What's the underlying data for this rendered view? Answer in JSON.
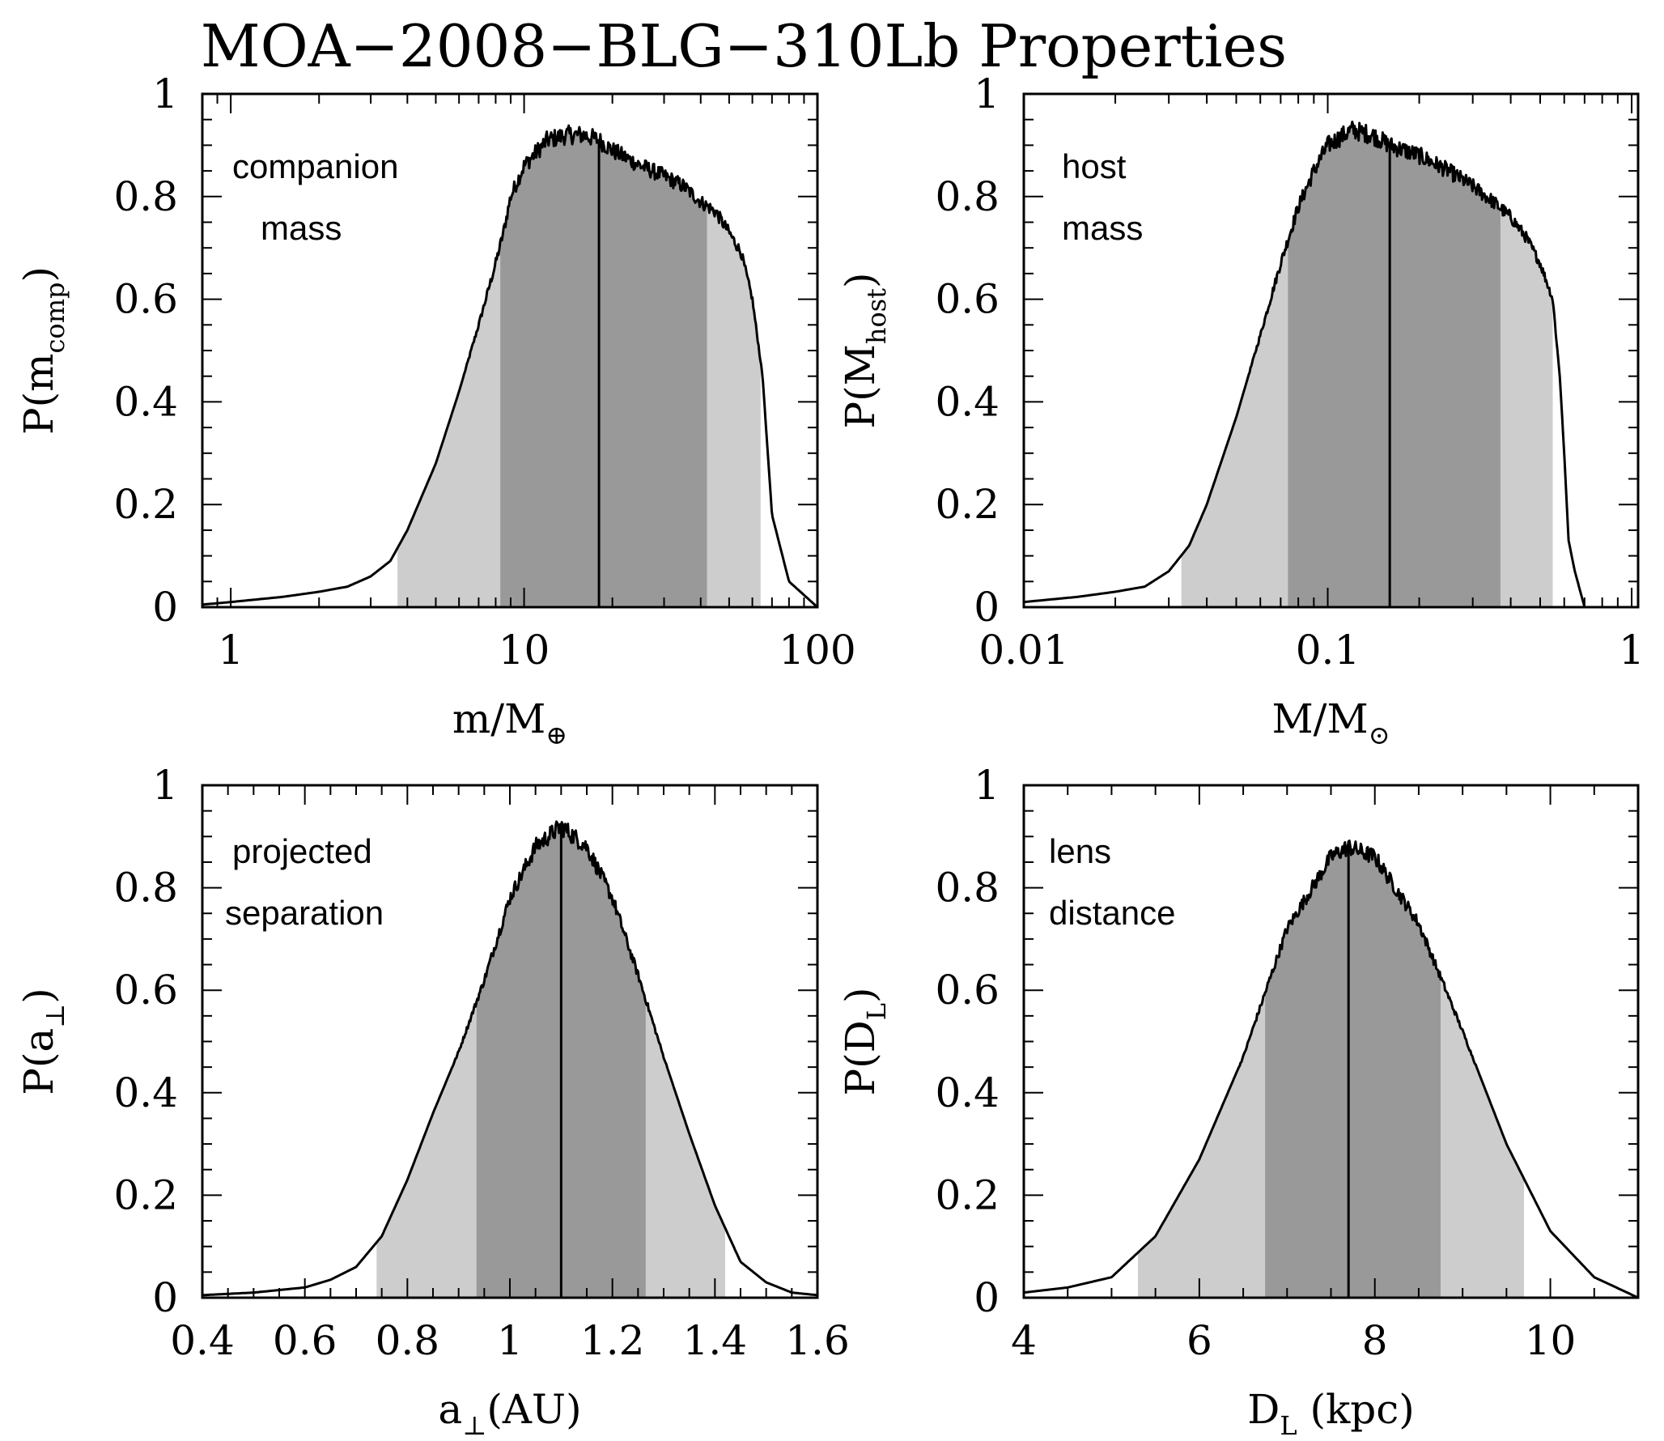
{
  "title": "MOA−2008−BLG−310Lb Properties",
  "colors": {
    "outer_band": "#cdcdcd",
    "inner_band": "#999999",
    "curve": "#000000"
  },
  "chart_data": [
    {
      "type": "area",
      "id": "companion-mass",
      "annotation": [
        "companion",
        "mass"
      ],
      "xscale": "log",
      "xlim": [
        0.8,
        100
      ],
      "ylim": [
        0,
        1
      ],
      "xticks": [
        1,
        10,
        100
      ],
      "xtick_labels": [
        "1",
        "10",
        "100"
      ],
      "yticks": [
        0,
        0.2,
        0.4,
        0.6,
        0.8,
        1
      ],
      "ytick_labels": [
        "0",
        "0.2",
        "0.4",
        "0.6",
        "0.8",
        "1"
      ],
      "xlabel": {
        "main": "m/M",
        "sub": "⊕"
      },
      "ylabel": {
        "main": "P(m",
        "sub": "comp",
        "end": ")"
      },
      "median": 18,
      "band_1sigma": [
        8.3,
        42
      ],
      "band_2sigma": [
        3.7,
        64
      ],
      "curve": {
        "x": [
          0.8,
          1,
          1.5,
          2,
          2.5,
          3,
          3.5,
          4,
          5,
          6,
          7,
          8,
          8.5,
          9,
          10,
          12,
          14,
          16,
          18,
          20,
          25,
          30,
          35,
          40,
          45,
          50,
          55,
          60,
          65,
          70,
          80,
          100
        ],
        "y": [
          0.005,
          0.01,
          0.02,
          0.03,
          0.04,
          0.06,
          0.09,
          0.15,
          0.28,
          0.42,
          0.55,
          0.67,
          0.73,
          0.8,
          0.86,
          0.91,
          0.92,
          0.92,
          0.91,
          0.89,
          0.86,
          0.84,
          0.82,
          0.79,
          0.77,
          0.73,
          0.69,
          0.6,
          0.45,
          0.18,
          0.05,
          0.0
        ]
      }
    },
    {
      "type": "area",
      "id": "host-mass",
      "annotation": [
        "host",
        "mass"
      ],
      "xscale": "log",
      "xlim": [
        0.01,
        1.05
      ],
      "ylim": [
        0,
        1
      ],
      "xticks": [
        0.01,
        0.1,
        1
      ],
      "xtick_labels": [
        "0.01",
        "0.1",
        "1"
      ],
      "yticks": [
        0,
        0.2,
        0.4,
        0.6,
        0.8,
        1
      ],
      "ytick_labels": [
        "0",
        "0.2",
        "0.4",
        "0.6",
        "0.8",
        "1"
      ],
      "xlabel": {
        "main": "M/M",
        "sub": "⊙"
      },
      "ylabel": {
        "main": "P(M",
        "sub": "host",
        "end": ")"
      },
      "median": 0.16,
      "band_1sigma": [
        0.074,
        0.37
      ],
      "band_2sigma": [
        0.033,
        0.55
      ],
      "curve": {
        "x": [
          0.01,
          0.015,
          0.02,
          0.025,
          0.03,
          0.035,
          0.04,
          0.05,
          0.06,
          0.07,
          0.08,
          0.09,
          0.1,
          0.12,
          0.14,
          0.16,
          0.2,
          0.25,
          0.3,
          0.35,
          0.4,
          0.45,
          0.5,
          0.55,
          0.58,
          0.6,
          0.62,
          0.65,
          0.7
        ],
        "y": [
          0.01,
          0.02,
          0.03,
          0.04,
          0.07,
          0.12,
          0.2,
          0.37,
          0.53,
          0.67,
          0.78,
          0.85,
          0.9,
          0.93,
          0.92,
          0.9,
          0.88,
          0.85,
          0.82,
          0.79,
          0.76,
          0.72,
          0.67,
          0.6,
          0.45,
          0.3,
          0.13,
          0.07,
          0.0
        ]
      }
    },
    {
      "type": "area",
      "id": "projected-separation",
      "annotation": [
        "projected",
        "separation"
      ],
      "xscale": "linear",
      "xlim": [
        0.4,
        1.6
      ],
      "ylim": [
        0,
        1
      ],
      "xticks": [
        0.4,
        0.6,
        0.8,
        1,
        1.2,
        1.4,
        1.6
      ],
      "xtick_labels": [
        "0.4",
        "0.6",
        "0.8",
        "1",
        "1.2",
        "1.4",
        "1.6"
      ],
      "yticks": [
        0,
        0.2,
        0.4,
        0.6,
        0.8,
        1
      ],
      "ytick_labels": [
        "0",
        "0.2",
        "0.4",
        "0.6",
        "0.8",
        "1"
      ],
      "xlabel": {
        "main": "a",
        "sub": "⊥",
        "end": "(AU)"
      },
      "ylabel": {
        "main": "P(a",
        "sub": "⊥",
        "end": ")"
      },
      "median": 1.1,
      "band_1sigma": [
        0.935,
        1.265
      ],
      "band_2sigma": [
        0.74,
        1.42
      ],
      "curve": {
        "x": [
          0.4,
          0.5,
          0.6,
          0.65,
          0.7,
          0.75,
          0.8,
          0.85,
          0.9,
          0.95,
          1.0,
          1.05,
          1.1,
          1.15,
          1.2,
          1.25,
          1.3,
          1.35,
          1.4,
          1.45,
          1.5,
          1.55,
          1.6
        ],
        "y": [
          0.005,
          0.01,
          0.02,
          0.035,
          0.06,
          0.12,
          0.23,
          0.36,
          0.48,
          0.62,
          0.78,
          0.88,
          0.92,
          0.88,
          0.78,
          0.63,
          0.47,
          0.32,
          0.18,
          0.07,
          0.03,
          0.01,
          0.005
        ]
      }
    },
    {
      "type": "area",
      "id": "lens-distance",
      "annotation": [
        "lens",
        "distance"
      ],
      "xscale": "linear",
      "xlim": [
        4,
        11
      ],
      "ylim": [
        0,
        1
      ],
      "xticks": [
        4,
        6,
        8,
        10
      ],
      "xtick_labels": [
        "4",
        "6",
        "8",
        "10"
      ],
      "yticks": [
        0,
        0.2,
        0.4,
        0.6,
        0.8,
        1
      ],
      "ytick_labels": [
        "0",
        "0.2",
        "0.4",
        "0.6",
        "0.8",
        "1"
      ],
      "xlabel": {
        "main": "D",
        "sub": "L",
        "end": " (kpc)"
      },
      "ylabel": {
        "main": "P(D",
        "sub": "L",
        "end": ")"
      },
      "median": 7.7,
      "band_1sigma": [
        6.75,
        8.75
      ],
      "band_2sigma": [
        5.3,
        9.7
      ],
      "curve": {
        "x": [
          4,
          4.5,
          5,
          5.5,
          6,
          6.5,
          7,
          7.5,
          7.7,
          8,
          8.5,
          9,
          9.5,
          10,
          10.5,
          11
        ],
        "y": [
          0.01,
          0.02,
          0.04,
          0.12,
          0.27,
          0.47,
          0.72,
          0.86,
          0.88,
          0.86,
          0.73,
          0.52,
          0.3,
          0.13,
          0.04,
          0.0
        ]
      }
    }
  ]
}
